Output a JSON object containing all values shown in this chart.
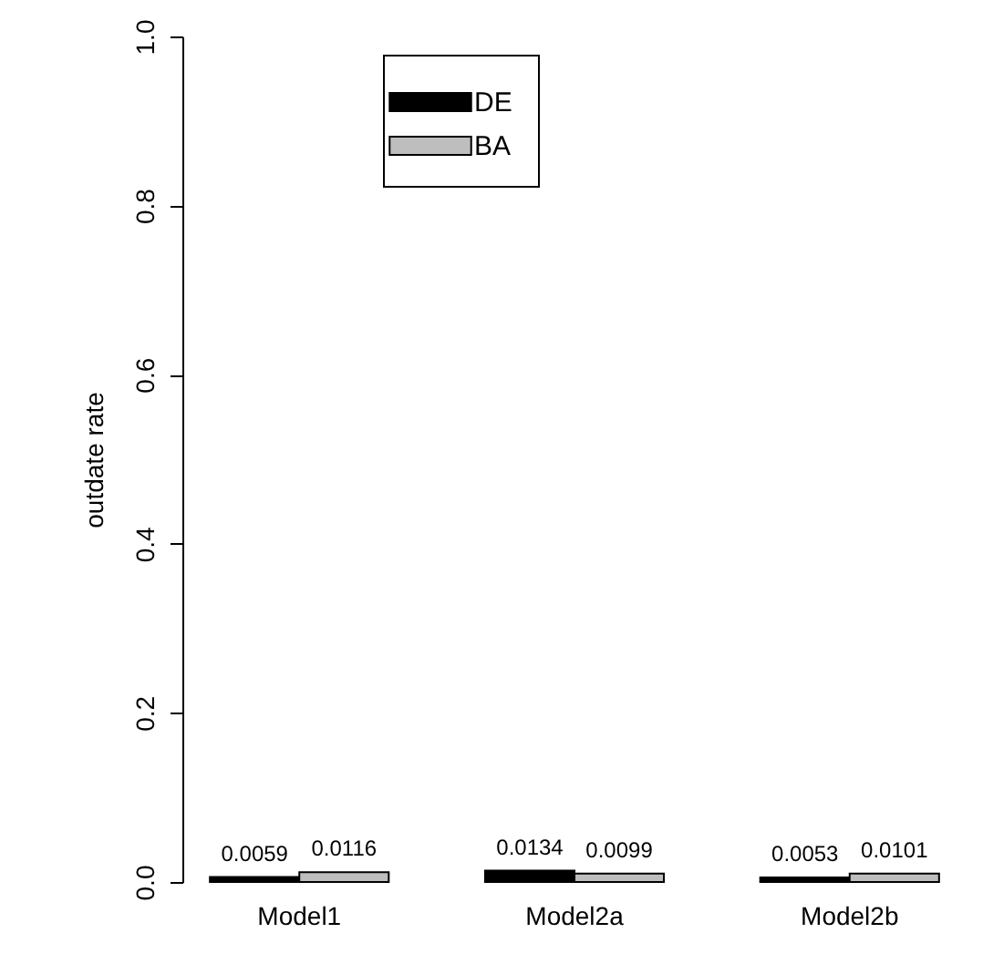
{
  "chart_data": {
    "type": "bar",
    "ylabel": "outdate rate",
    "categories": [
      "Model1",
      "Model2a",
      "Model2b"
    ],
    "series": [
      {
        "name": "DE",
        "color": "#000000",
        "values": [
          0.0059,
          0.0134,
          0.0053
        ]
      },
      {
        "name": "BA",
        "color": "#bebebe",
        "values": [
          0.0116,
          0.0099,
          0.0101
        ]
      }
    ],
    "ylim": [
      0,
      1
    ],
    "yticks": [
      {
        "value": 0,
        "label": "0.0"
      },
      {
        "value": 0.2,
        "label": "0.2"
      },
      {
        "value": 0.4,
        "label": "0.4"
      },
      {
        "value": 0.6,
        "label": "0.6"
      },
      {
        "value": 0.8,
        "label": "0.8"
      },
      {
        "value": 1,
        "label": "1.0"
      }
    ],
    "data_labels": true,
    "grid": false,
    "legend": "top"
  }
}
